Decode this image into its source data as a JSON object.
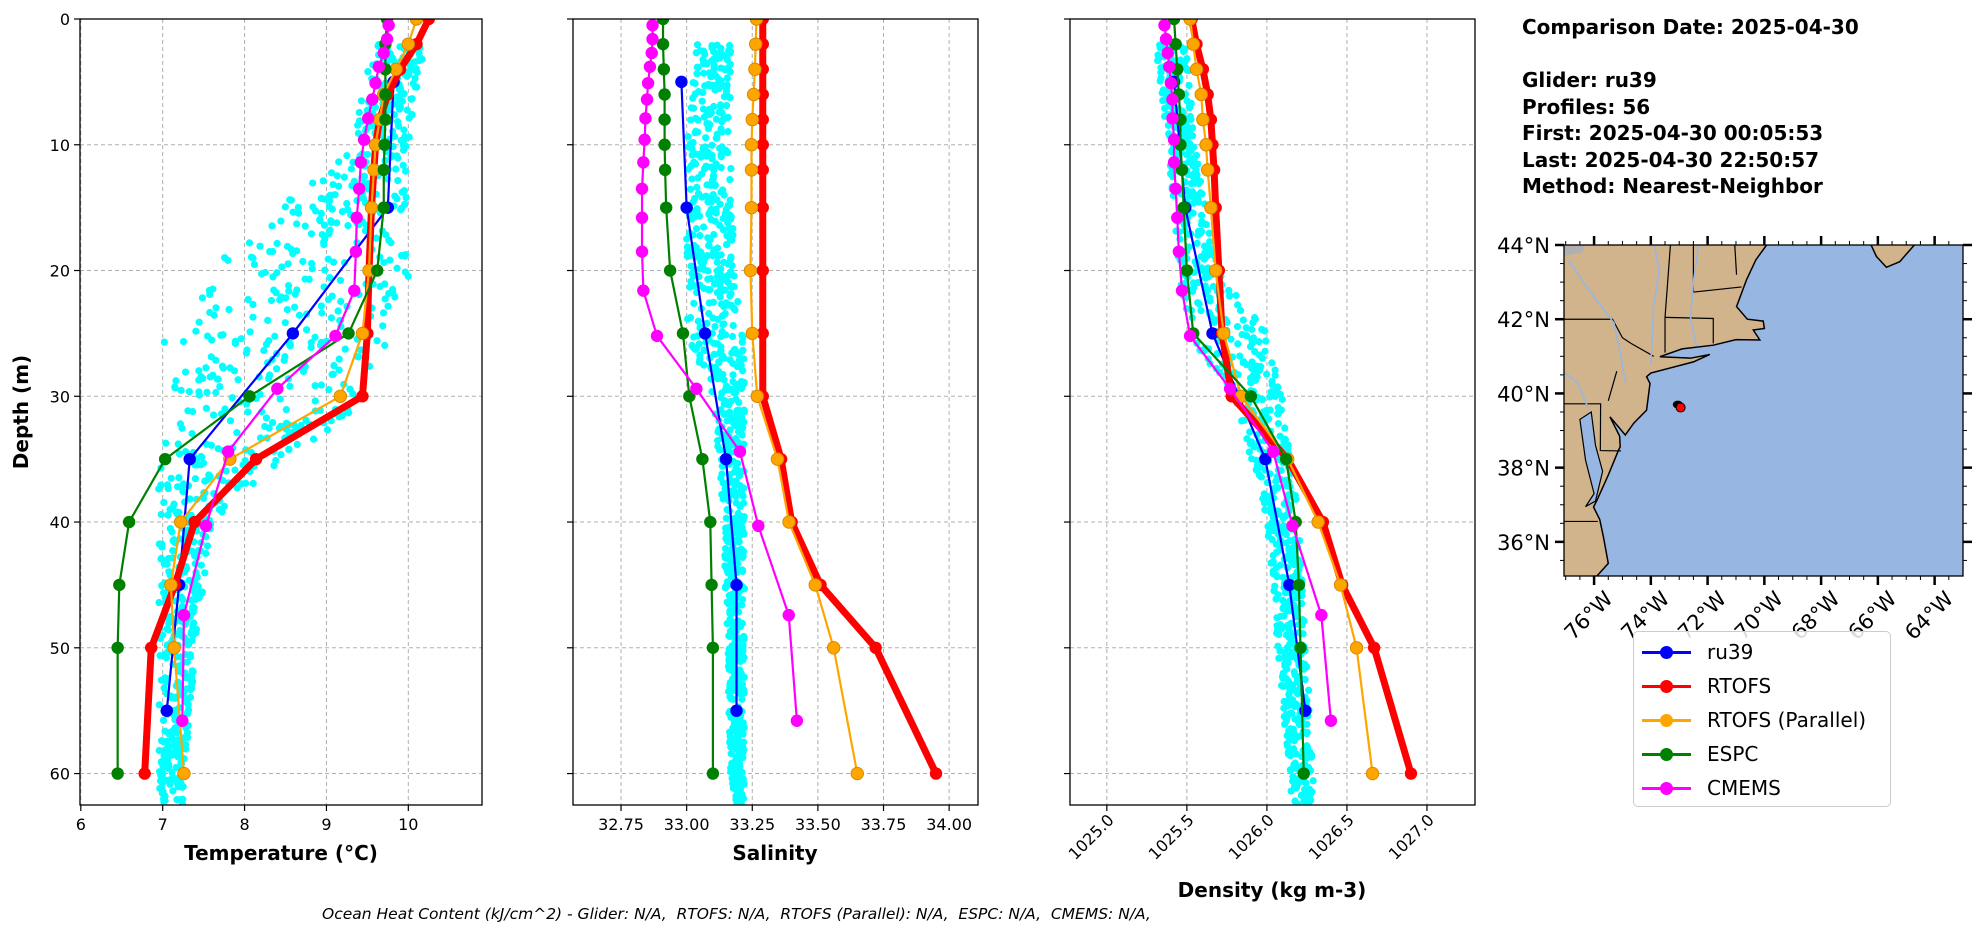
{
  "info": {
    "comparison_date": "Comparison Date: 2025-04-30",
    "glider": "Glider: ru39",
    "profiles": "Profiles: 56",
    "first": "First: 2025-04-30 00:05:53",
    "last": "Last: 2025-04-30 22:50:57",
    "method": "Method: Nearest-Neighbor"
  },
  "caption": "Ocean Heat Content (kJ/cm^2) - Glider: N/A,  RTOFS: N/A,  RTOFS (Parallel): N/A,  ESPC: N/A,  CMEMS: N/A,",
  "legend": [
    {
      "name": "ru39",
      "color": "#0000ff"
    },
    {
      "name": "RTOFS",
      "color": "#ff0000"
    },
    {
      "name": "RTOFS (Parallel)",
      "color": "#ffa500"
    },
    {
      "name": "ESPC",
      "color": "#008000"
    },
    {
      "name": "CMEMS",
      "color": "#ff00ff"
    }
  ],
  "scatter_color": "#00ffff",
  "chart_data": [
    {
      "type": "line",
      "xlabel": "Temperature (°C)",
      "ylabel": "Depth (m)",
      "xlim": [
        5.99,
        10.9
      ],
      "ylim": [
        62.5,
        0
      ],
      "xticks": [
        "6",
        "7",
        "8",
        "9",
        "10"
      ],
      "xtick_values": [
        6,
        7,
        8,
        9,
        10
      ],
      "yticks": [
        "0",
        "10",
        "20",
        "30",
        "40",
        "50",
        "60"
      ],
      "grid": true,
      "glider_scatter_envelope": {
        "depth": [
          2,
          10,
          18,
          22,
          25,
          30,
          35,
          40,
          50,
          62
        ],
        "min": [
          9.55,
          9.3,
          7.9,
          7.3,
          7.0,
          7.0,
          6.95,
          6.95,
          6.95,
          6.95
        ],
        "max": [
          10.2,
          10.0,
          10.0,
          10.0,
          9.9,
          9.6,
          8.5,
          7.6,
          7.4,
          7.25
        ]
      },
      "series": [
        {
          "name": "ru39",
          "depth": [
            5,
            15,
            25,
            35,
            45,
            55
          ],
          "values": [
            9.82,
            9.75,
            8.59,
            7.33,
            7.2,
            7.05
          ]
        },
        {
          "name": "RTOFS",
          "depth": [
            0,
            2,
            4,
            6,
            8,
            10,
            12,
            15,
            20,
            25,
            30,
            35,
            40,
            45,
            50,
            60
          ],
          "values": [
            10.25,
            10.1,
            9.9,
            9.75,
            9.65,
            9.6,
            9.58,
            9.55,
            9.52,
            9.5,
            9.44,
            8.14,
            7.39,
            7.15,
            6.86,
            6.78
          ]
        },
        {
          "name": "RTOFS (Parallel)",
          "depth": [
            0,
            2,
            4,
            6,
            8,
            10,
            12,
            15,
            20,
            25,
            30,
            35,
            40,
            45,
            50,
            60
          ],
          "values": [
            10.1,
            10.0,
            9.85,
            9.7,
            9.65,
            9.6,
            9.58,
            9.55,
            9.52,
            9.44,
            9.17,
            7.82,
            7.22,
            7.1,
            7.14,
            7.26
          ]
        },
        {
          "name": "ESPC",
          "depth": [
            0,
            2,
            4,
            6,
            8,
            10,
            12,
            15,
            20,
            25,
            30,
            35,
            40,
            45,
            50,
            60
          ],
          "values": [
            9.74,
            9.72,
            9.72,
            9.72,
            9.72,
            9.71,
            9.7,
            9.7,
            9.62,
            9.27,
            8.06,
            7.03,
            6.59,
            6.47,
            6.45,
            6.45
          ]
        },
        {
          "name": "CMEMS",
          "depth": [
            0.5,
            1.6,
            2.7,
            3.8,
            5.1,
            6.4,
            7.9,
            9.6,
            11.4,
            13.5,
            15.8,
            18.5,
            21.6,
            25.2,
            29.4,
            34.4,
            40.3,
            47.4,
            55.8
          ],
          "values": [
            9.76,
            9.74,
            9.7,
            9.64,
            9.6,
            9.56,
            9.51,
            9.46,
            9.42,
            9.4,
            9.37,
            9.36,
            9.34,
            9.11,
            8.4,
            7.8,
            7.53,
            7.26,
            7.24
          ]
        }
      ]
    },
    {
      "type": "line",
      "xlabel": "Salinity",
      "xlim": [
        32.567,
        34.11
      ],
      "ylim": [
        62.5,
        0
      ],
      "xticks": [
        "32.75",
        "33.00",
        "33.25",
        "33.50",
        "33.75",
        "34.00"
      ],
      "xtick_values": [
        32.75,
        33.0,
        33.25,
        33.5,
        33.75,
        34.0
      ],
      "grid": true,
      "glider_scatter_envelope": {
        "depth": [
          2,
          10,
          20,
          25,
          30,
          40,
          62
        ],
        "min": [
          33.04,
          33.0,
          33.0,
          33.0,
          33.1,
          33.14,
          33.17
        ],
        "max": [
          33.17,
          33.17,
          33.18,
          33.22,
          33.22,
          33.22,
          33.22
        ]
      },
      "series": [
        {
          "name": "ru39",
          "depth": [
            5,
            15,
            25,
            35,
            45,
            55
          ],
          "values": [
            32.98,
            33.0,
            33.07,
            33.15,
            33.19,
            33.19
          ]
        },
        {
          "name": "RTOFS",
          "depth": [
            0,
            2,
            4,
            6,
            8,
            10,
            12,
            15,
            20,
            25,
            30,
            35,
            40,
            45,
            50,
            60
          ],
          "values": [
            33.29,
            33.29,
            33.29,
            33.29,
            33.29,
            33.29,
            33.29,
            33.29,
            33.29,
            33.29,
            33.29,
            33.36,
            33.4,
            33.51,
            33.72,
            33.95
          ]
        },
        {
          "name": "RTOFS (Parallel)",
          "depth": [
            0,
            2,
            4,
            6,
            8,
            10,
            12,
            15,
            20,
            25,
            30,
            35,
            40,
            45,
            50,
            60
          ],
          "values": [
            33.266,
            33.263,
            33.26,
            33.255,
            33.25,
            33.247,
            33.247,
            33.247,
            33.243,
            33.25,
            33.269,
            33.346,
            33.39,
            33.49,
            33.56,
            33.65
          ]
        },
        {
          "name": "ESPC",
          "depth": [
            0,
            2,
            4,
            6,
            8,
            10,
            12,
            15,
            20,
            25,
            30,
            35,
            40,
            45,
            50,
            60
          ],
          "values": [
            32.91,
            32.91,
            32.913,
            32.916,
            32.916,
            32.916,
            32.918,
            32.922,
            32.937,
            32.986,
            33.01,
            33.06,
            33.09,
            33.095,
            33.1,
            33.1
          ]
        },
        {
          "name": "CMEMS",
          "depth": [
            0.5,
            1.6,
            2.7,
            3.8,
            5.1,
            6.4,
            7.9,
            9.6,
            11.4,
            13.5,
            15.8,
            18.5,
            21.6,
            25.2,
            29.4,
            34.4,
            40.3,
            47.4,
            55.8
          ],
          "values": [
            32.87,
            32.87,
            32.867,
            32.86,
            32.853,
            32.849,
            32.843,
            32.84,
            32.835,
            32.83,
            32.83,
            32.83,
            32.835,
            32.887,
            33.037,
            33.203,
            33.273,
            33.389,
            33.42
          ]
        }
      ]
    },
    {
      "type": "line",
      "xlabel": "Density (kg m-3)",
      "xlim": [
        1024.77,
        1027.3
      ],
      "ylim": [
        62.5,
        0
      ],
      "xticks": [
        "1025.0",
        "1025.5",
        "1026.0",
        "1026.5",
        "1027.0"
      ],
      "xtick_values": [
        1025.0,
        1025.5,
        1026.0,
        1026.5,
        1027.0
      ],
      "grid": true,
      "glider_scatter_envelope": {
        "depth": [
          2,
          10,
          20,
          25,
          30,
          40,
          62
        ],
        "min": [
          1025.3,
          1025.38,
          1025.45,
          1025.5,
          1025.8,
          1026.0,
          1026.15
        ],
        "max": [
          1025.5,
          1025.55,
          1025.7,
          1026.0,
          1026.1,
          1026.2,
          1026.3
        ]
      },
      "series": [
        {
          "name": "ru39",
          "depth": [
            5,
            15,
            25,
            35,
            45,
            55
          ],
          "values": [
            1025.42,
            1025.49,
            1025.66,
            1025.99,
            1026.14,
            1026.24
          ]
        },
        {
          "name": "RTOFS",
          "depth": [
            0,
            2,
            4,
            6,
            8,
            10,
            12,
            15,
            20,
            25,
            30,
            35,
            40,
            45,
            50,
            60
          ],
          "values": [
            1025.53,
            1025.56,
            1025.6,
            1025.63,
            1025.65,
            1025.66,
            1025.67,
            1025.68,
            1025.7,
            1025.72,
            1025.78,
            1026.13,
            1026.35,
            1026.47,
            1026.67,
            1026.9
          ]
        },
        {
          "name": "RTOFS (Parallel)",
          "depth": [
            0,
            2,
            4,
            6,
            8,
            10,
            12,
            15,
            20,
            25,
            30,
            35,
            40,
            45,
            50,
            60
          ],
          "values": [
            1025.52,
            1025.54,
            1025.56,
            1025.59,
            1025.6,
            1025.62,
            1025.63,
            1025.65,
            1025.68,
            1025.73,
            1025.84,
            1026.13,
            1026.32,
            1026.46,
            1026.56,
            1026.66
          ]
        },
        {
          "name": "ESPC",
          "depth": [
            0,
            2,
            4,
            6,
            8,
            10,
            12,
            15,
            20,
            25,
            30,
            35,
            40,
            45,
            50,
            60
          ],
          "values": [
            1025.42,
            1025.43,
            1025.44,
            1025.45,
            1025.46,
            1025.46,
            1025.47,
            1025.48,
            1025.5,
            1025.54,
            1025.9,
            1026.12,
            1026.18,
            1026.2,
            1026.21,
            1026.23
          ]
        },
        {
          "name": "CMEMS",
          "depth": [
            0.5,
            1.6,
            2.7,
            3.8,
            5.1,
            6.4,
            7.9,
            9.6,
            11.4,
            13.5,
            15.8,
            18.5,
            21.6,
            25.2,
            29.4,
            34.4,
            40.3,
            47.4,
            55.8
          ],
          "values": [
            1025.36,
            1025.37,
            1025.38,
            1025.39,
            1025.4,
            1025.41,
            1025.41,
            1025.42,
            1025.42,
            1025.43,
            1025.44,
            1025.45,
            1025.47,
            1025.52,
            1025.77,
            1026.04,
            1026.16,
            1026.34,
            1026.4
          ]
        }
      ]
    }
  ],
  "map": {
    "lon_range": [
      -77.06,
      -63.0
    ],
    "lat_range": [
      35.08,
      44.0
    ],
    "lat_ticks": [
      "36°N",
      "38°N",
      "40°N",
      "42°N",
      "44°N"
    ],
    "lat_tick_values": [
      36,
      38,
      40,
      42,
      44
    ],
    "lon_ticks": [
      "76°W",
      "74°W",
      "72°W",
      "70°W",
      "68°W",
      "66°W",
      "64°W"
    ],
    "lon_tick_values": [
      -76,
      -74,
      -72,
      -70,
      -68,
      -66,
      -64
    ],
    "ocean_color": "#97b6e1",
    "land_color": "#d2b48c",
    "glider_track": {
      "lon": -73.05,
      "lat": 39.7
    },
    "glider_position": {
      "lon": -72.95,
      "lat": 39.62
    }
  }
}
